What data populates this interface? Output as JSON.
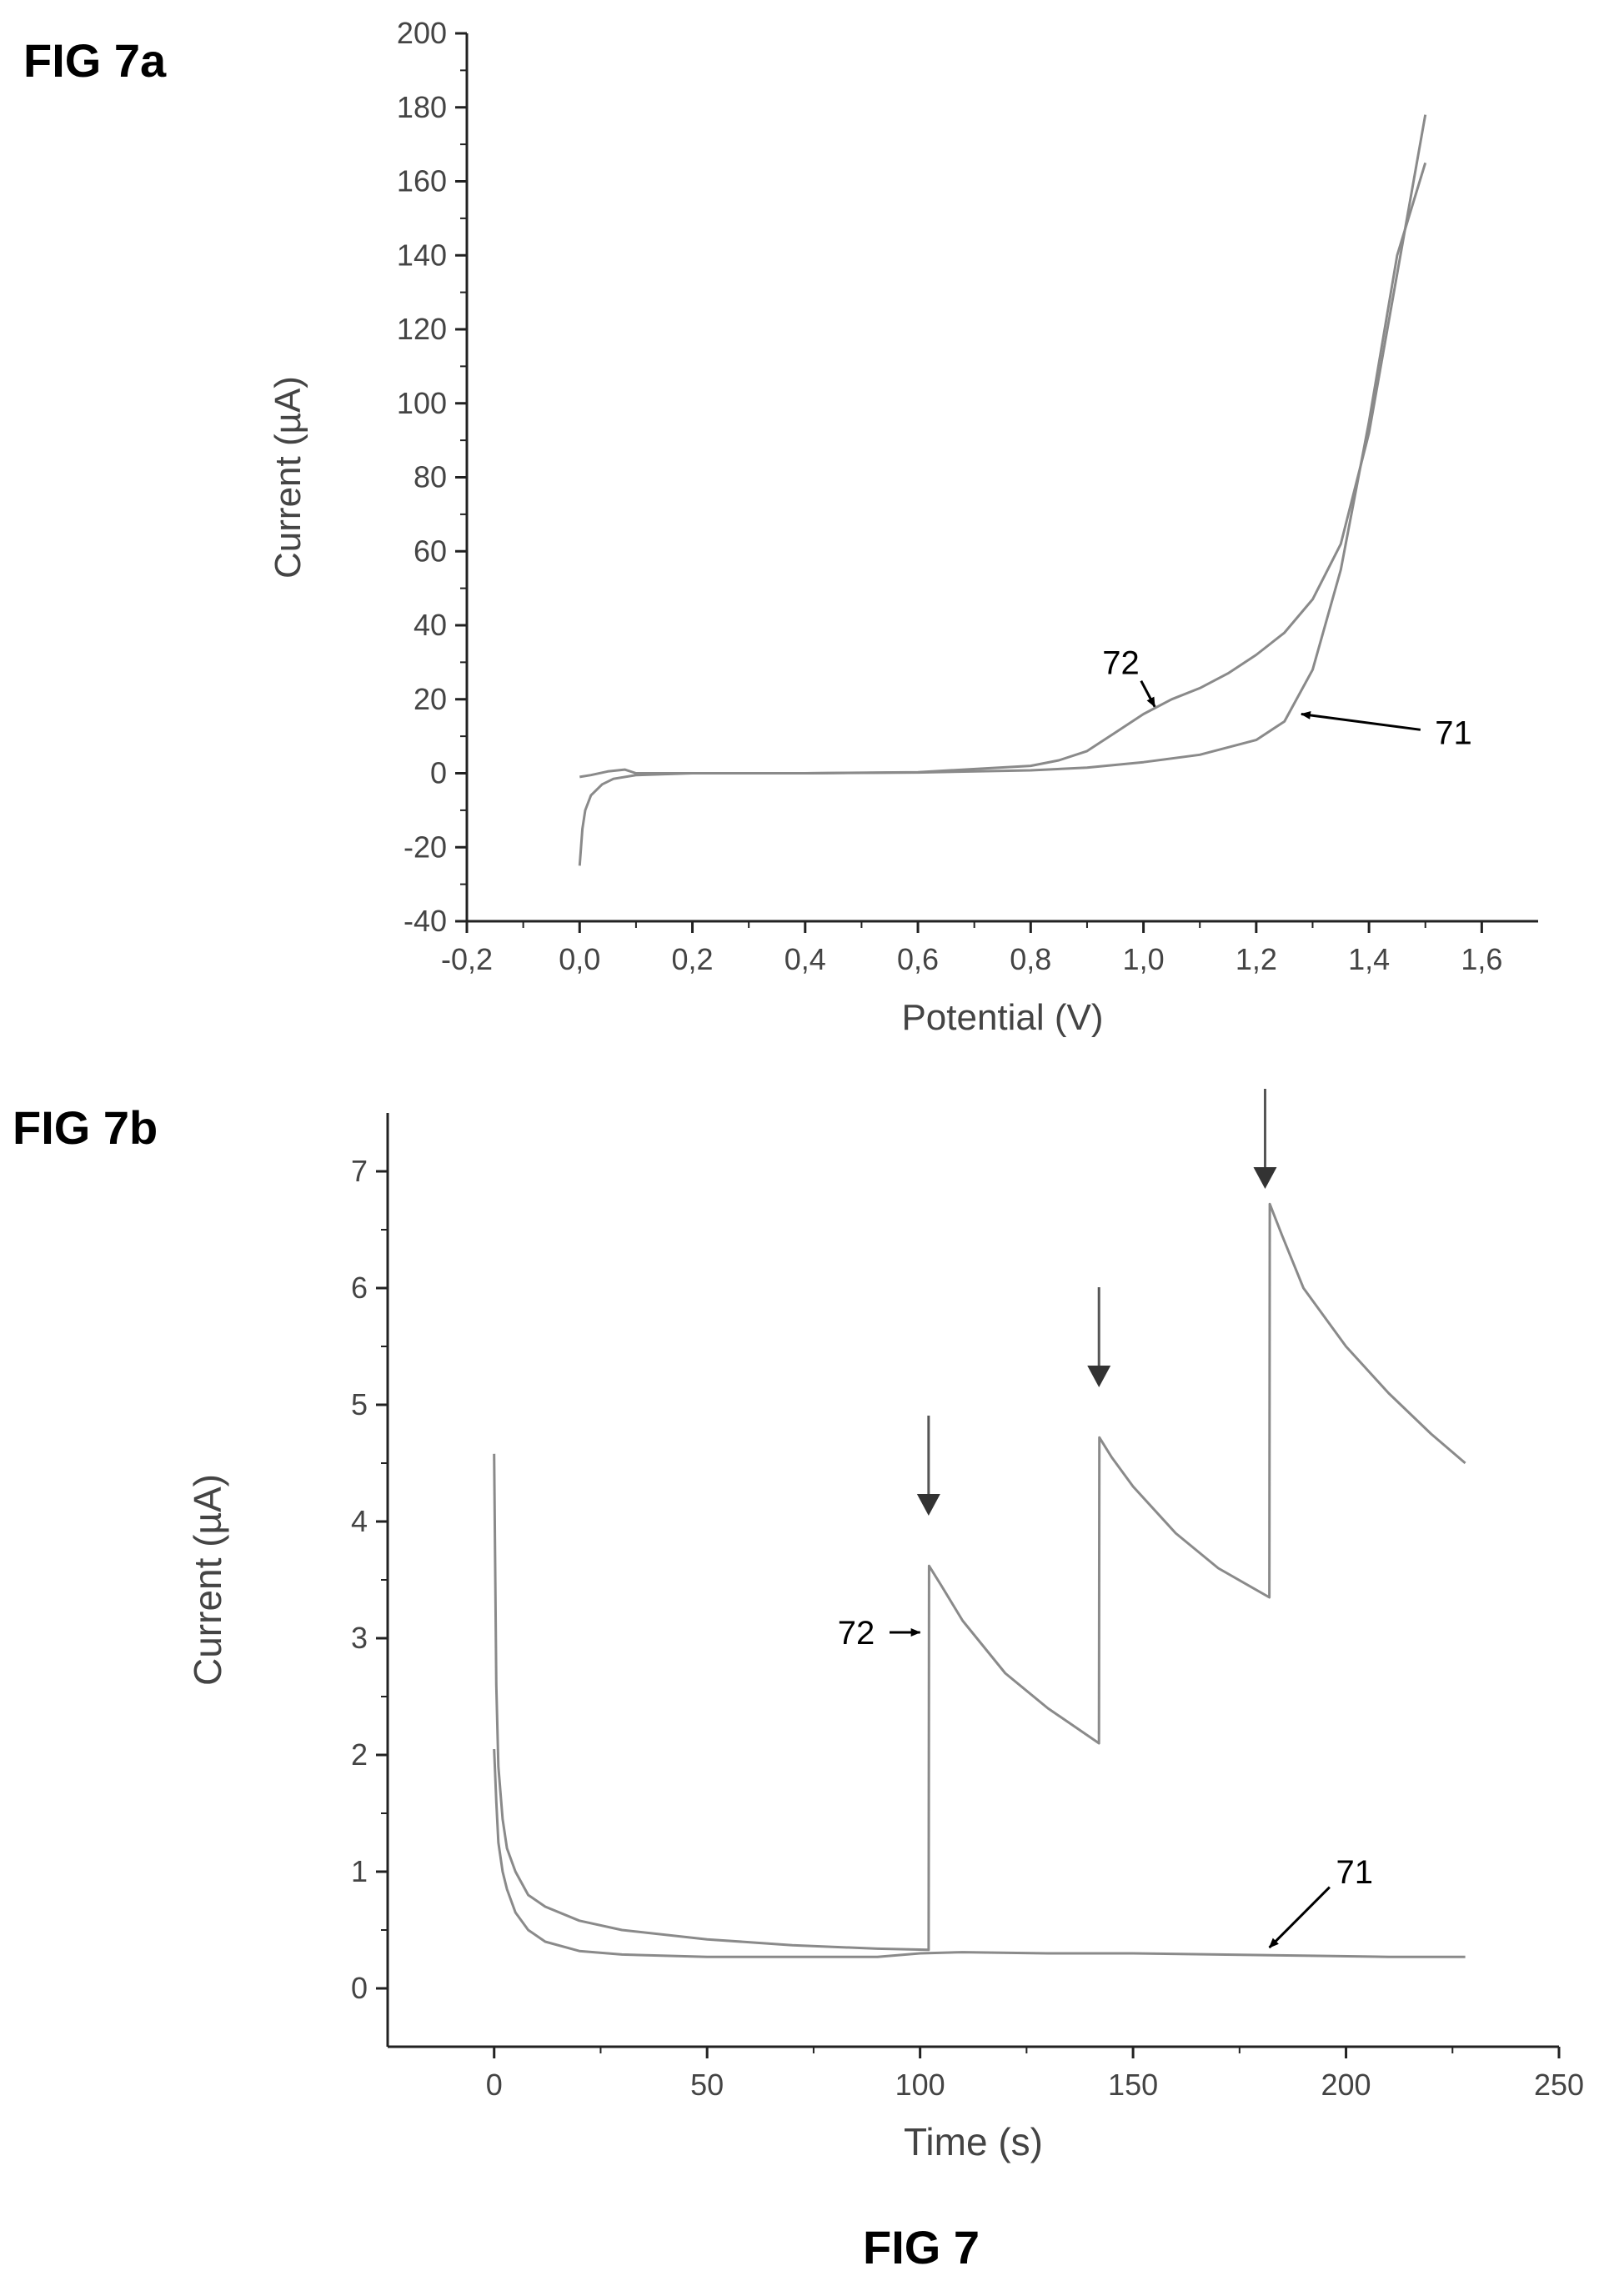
{
  "figure": {
    "caption": "FIG 7"
  },
  "chart_data": [
    {
      "label": "FIG 7a",
      "type": "line",
      "xlabel": "Potential (V)",
      "ylabel": "Current (µA)",
      "xlim": [
        -0.2,
        1.7
      ],
      "ylim": [
        -40,
        200
      ],
      "xticks": [
        -0.2,
        0.0,
        0.2,
        0.4,
        0.6,
        0.8,
        1.0,
        1.2,
        1.4,
        1.6
      ],
      "xtick_labels": [
        "-0,2",
        "0,0",
        "0,2",
        "0,4",
        "0,6",
        "0,8",
        "1,0",
        "1,2",
        "1,4",
        "1,6"
      ],
      "yticks": [
        -40,
        -20,
        0,
        20,
        40,
        60,
        80,
        100,
        120,
        140,
        160,
        180,
        200
      ],
      "ytick_labels": [
        "-40",
        "-20",
        "0",
        "20",
        "40",
        "60",
        "80",
        "100",
        "120",
        "140",
        "160",
        "180",
        "200"
      ],
      "grid": false,
      "series": [
        {
          "x": [
            0.0,
            0.005,
            0.01,
            0.02,
            0.04,
            0.06,
            0.1,
            0.2,
            0.4,
            0.6,
            0.8,
            0.9,
            1.0,
            1.1,
            1.2,
            1.25,
            1.3,
            1.35,
            1.4,
            1.45,
            1.5
          ],
          "y": [
            -25,
            -15,
            -10,
            -6,
            -3,
            -1.5,
            -0.5,
            0,
            0,
            0.2,
            0.8,
            1.5,
            3,
            5,
            9,
            14,
            28,
            55,
            95,
            140,
            165
          ]
        },
        {
          "x": [
            0.0,
            0.02,
            0.05,
            0.08,
            0.1,
            0.2,
            0.4,
            0.6,
            0.8,
            0.85,
            0.9,
            0.95,
            1.0,
            1.05,
            1.1,
            1.15,
            1.2,
            1.25,
            1.3,
            1.35,
            1.4,
            1.45,
            1.5
          ],
          "y": [
            -1,
            -0.5,
            0.5,
            1,
            0,
            0,
            0,
            0.3,
            2,
            3.5,
            6,
            11,
            16,
            20,
            23,
            27,
            32,
            38,
            47,
            62,
            92,
            135,
            178
          ]
        }
      ],
      "annotations": [
        {
          "text": "72",
          "x": 0.96,
          "y": 30,
          "arrow_to": [
            1.02,
            18
          ]
        },
        {
          "text": "71",
          "x": 1.55,
          "y": 11,
          "arrow_to": [
            1.28,
            16
          ]
        }
      ]
    },
    {
      "label": "FIG 7b",
      "type": "line",
      "xlabel": "Time (s)",
      "ylabel": "Current (µA)",
      "xlim": [
        -25,
        250
      ],
      "ylim": [
        -0.5,
        7.5
      ],
      "xticks": [
        0,
        50,
        100,
        150,
        200,
        250
      ],
      "xtick_labels": [
        "0",
        "50",
        "100",
        "150",
        "200",
        "250"
      ],
      "yticks": [
        0,
        1,
        2,
        3,
        4,
        5,
        6,
        7
      ],
      "ytick_labels": [
        "0",
        "1",
        "2",
        "3",
        "4",
        "5",
        "6",
        "7"
      ],
      "grid": false,
      "series": [
        {
          "x": [
            0,
            0.5,
            1,
            2,
            3,
            5,
            8,
            12,
            20,
            30,
            50,
            70,
            90,
            100,
            110,
            130,
            150,
            170,
            190,
            210,
            228
          ],
          "y": [
            2.05,
            1.6,
            1.25,
            1.0,
            0.85,
            0.65,
            0.5,
            0.4,
            0.32,
            0.29,
            0.27,
            0.27,
            0.27,
            0.3,
            0.31,
            0.3,
            0.3,
            0.29,
            0.28,
            0.27,
            0.27
          ]
        },
        {
          "x": [
            0,
            0.5,
            1,
            2,
            3,
            5,
            8,
            12,
            20,
            30,
            50,
            70,
            90,
            102,
            102.1,
            105,
            110,
            120,
            130,
            142,
            142.1,
            145,
            150,
            160,
            170,
            182,
            182.1,
            185,
            190,
            200,
            210,
            220,
            228
          ],
          "y": [
            4.58,
            2.6,
            1.9,
            1.45,
            1.2,
            1.0,
            0.8,
            0.7,
            0.58,
            0.5,
            0.42,
            0.37,
            0.34,
            0.33,
            3.62,
            3.45,
            3.15,
            2.7,
            2.4,
            2.1,
            4.72,
            4.55,
            4.3,
            3.9,
            3.6,
            3.35,
            6.72,
            6.45,
            6.0,
            5.5,
            5.1,
            4.75,
            4.5
          ]
        }
      ],
      "markers": [
        {
          "x": 102,
          "y": 4.05
        },
        {
          "x": 142,
          "y": 5.15
        },
        {
          "x": 181,
          "y": 6.85
        }
      ],
      "annotations": [
        {
          "text": "72",
          "x": 85,
          "y": 3.05,
          "arrow_to": [
            100,
            3.05
          ]
        },
        {
          "text": "71",
          "x": 202,
          "y": 1.0,
          "arrow_to": [
            182,
            0.35
          ]
        }
      ]
    }
  ]
}
